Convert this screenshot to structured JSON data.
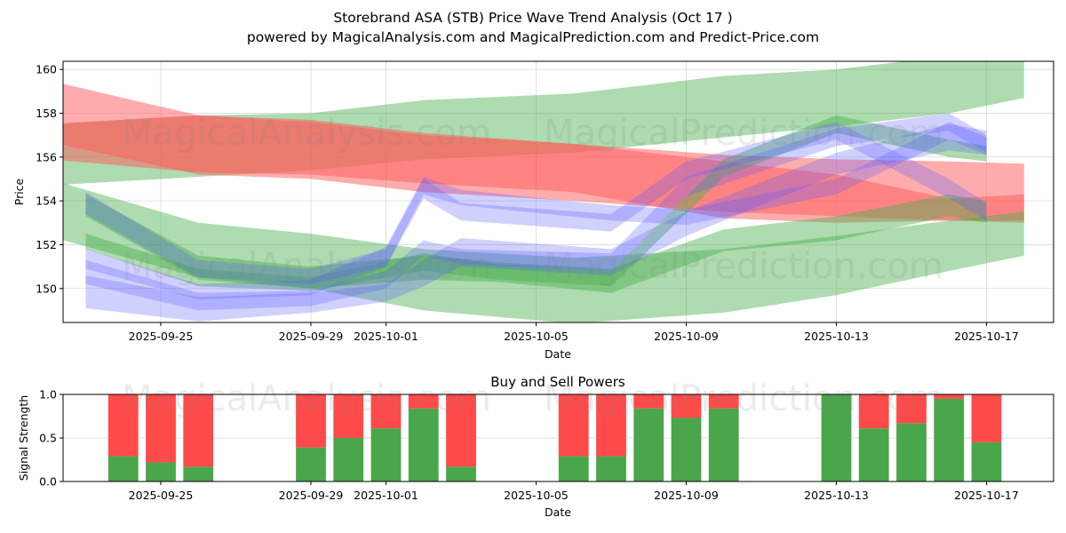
{
  "title": {
    "line1": "Storebrand ASA (STB) Price Wave Trend Analysis (Oct 17 )",
    "line2": "powered by MagicalAnalysis.com and MagicalPrediction.com and Predict-Price.com"
  },
  "watermarks": [
    "MagicalAnalysis.com",
    "MagicalPrediction.com"
  ],
  "colors": {
    "green_band": "#4caf50",
    "red_band": "#ff5a5a",
    "blue_band": "#5a5aff",
    "buy": "#4aa64a",
    "sell": "#ff4a4a",
    "grid": "#d9d9d9"
  },
  "chart_data": [
    {
      "type": "area",
      "title": "",
      "xlabel": "Date",
      "ylabel": "Price",
      "ylim": [
        148.45,
        160.37
      ],
      "xlim": [
        "2025-09-22",
        "2025-10-18"
      ],
      "yticks": [
        150,
        152,
        154,
        156,
        158,
        160
      ],
      "xticks": [
        "2025-09-25",
        "2025-09-29",
        "2025-10-01",
        "2025-10-05",
        "2025-10-09",
        "2025-10-13",
        "2025-10-17"
      ],
      "grid": true,
      "bands": [
        {
          "name": "green-upper-channel",
          "color": "green",
          "x": [
            "2025-09-22",
            "2025-09-26",
            "2025-09-29",
            "2025-10-02",
            "2025-10-06",
            "2025-10-10",
            "2025-10-13",
            "2025-10-16",
            "2025-10-18"
          ],
          "upper": [
            157.5,
            157.9,
            158.0,
            158.6,
            158.9,
            159.7,
            160.0,
            160.6,
            161.0
          ],
          "lower": [
            154.7,
            155.1,
            155.4,
            155.9,
            156.2,
            156.9,
            157.4,
            158.0,
            158.7
          ]
        },
        {
          "name": "red-upper-channel",
          "color": "red",
          "x": [
            "2025-09-22",
            "2025-09-26",
            "2025-09-29",
            "2025-10-02",
            "2025-10-06",
            "2025-10-10",
            "2025-10-13",
            "2025-10-16",
            "2025-10-18"
          ],
          "upper": [
            159.5,
            157.9,
            157.6,
            157.0,
            156.6,
            156.1,
            155.9,
            155.8,
            155.7
          ],
          "lower": [
            156.7,
            155.2,
            155.0,
            154.4,
            154.0,
            153.5,
            153.3,
            153.1,
            153.0
          ]
        },
        {
          "name": "red-lower-channel",
          "color": "red",
          "x": [
            "2025-09-22",
            "2025-09-26",
            "2025-09-29",
            "2025-10-02",
            "2025-10-06",
            "2025-10-10",
            "2025-10-13",
            "2025-10-16",
            "2025-10-18"
          ],
          "upper": [
            157.5,
            157.9,
            157.7,
            157.1,
            156.6,
            155.8,
            155.2,
            154.1,
            154.3
          ],
          "lower": [
            155.9,
            155.3,
            155.2,
            154.8,
            154.4,
            153.2,
            153.0,
            153.1,
            153.1
          ]
        },
        {
          "name": "green-lower-channel",
          "color": "green",
          "x": [
            "2025-09-22",
            "2025-09-26",
            "2025-09-29",
            "2025-10-02",
            "2025-10-06",
            "2025-10-10",
            "2025-10-13",
            "2025-10-16",
            "2025-10-18"
          ],
          "upper": [
            155.0,
            153.0,
            152.5,
            151.8,
            151.4,
            151.8,
            152.4,
            153.1,
            153.5
          ],
          "lower": [
            152.4,
            150.5,
            150.0,
            149.0,
            148.4,
            148.9,
            149.7,
            150.8,
            151.5
          ]
        },
        {
          "name": "green-wave-1",
          "color": "green",
          "x": [
            "2025-09-23",
            "2025-09-26",
            "2025-09-29",
            "2025-10-02",
            "2025-10-04",
            "2025-10-07",
            "2025-10-10",
            "2025-10-13",
            "2025-10-16",
            "2025-10-17"
          ],
          "upper": [
            154.3,
            151.5,
            151.0,
            151.5,
            151.2,
            150.9,
            152.7,
            153.3,
            154.3,
            154.0
          ],
          "lower": [
            153.3,
            150.4,
            150.0,
            150.4,
            150.3,
            149.8,
            151.7,
            152.2,
            153.3,
            153.0
          ]
        },
        {
          "name": "green-wave-2",
          "color": "green",
          "x": [
            "2025-09-23",
            "2025-09-26",
            "2025-09-29",
            "2025-10-02",
            "2025-10-04",
            "2025-10-07",
            "2025-10-10",
            "2025-10-13",
            "2025-10-16",
            "2025-10-17"
          ],
          "upper": [
            152.5,
            150.9,
            150.5,
            151.6,
            151.1,
            150.8,
            155.9,
            157.9,
            156.8,
            156.5
          ],
          "lower": [
            151.8,
            150.1,
            149.9,
            150.8,
            150.4,
            150.1,
            155.1,
            157.1,
            156.0,
            155.8
          ]
        },
        {
          "name": "blue-wave-1",
          "color": "blue",
          "x": [
            "2025-09-23",
            "2025-09-26",
            "2025-09-29",
            "2025-10-01",
            "2025-10-02",
            "2025-10-03",
            "2025-10-07",
            "2025-10-09",
            "2025-10-13",
            "2025-10-16",
            "2025-10-17"
          ],
          "upper": [
            151.8,
            150.2,
            150.4,
            151.9,
            155.1,
            154.5,
            153.8,
            153.6,
            155.0,
            157.6,
            156.9
          ],
          "lower": [
            150.9,
            149.5,
            149.7,
            151.0,
            154.3,
            153.8,
            153.1,
            152.9,
            154.3,
            156.8,
            156.1
          ]
        },
        {
          "name": "blue-wave-2",
          "color": "blue",
          "x": [
            "2025-09-23",
            "2025-09-26",
            "2025-09-29",
            "2025-10-01",
            "2025-10-02",
            "2025-10-03",
            "2025-10-07",
            "2025-10-09",
            "2025-10-13",
            "2025-10-16",
            "2025-10-17"
          ],
          "upper": [
            151.3,
            149.8,
            149.9,
            150.8,
            152.2,
            151.8,
            151.6,
            155.1,
            157.3,
            158.0,
            157.0
          ],
          "lower": [
            150.2,
            149.0,
            149.2,
            150.0,
            151.5,
            151.1,
            150.8,
            154.2,
            156.5,
            157.2,
            156.2
          ]
        },
        {
          "name": "blue-wave-3",
          "color": "blue",
          "x": [
            "2025-09-23",
            "2025-09-26",
            "2025-09-29",
            "2025-10-01",
            "2025-10-02",
            "2025-10-03",
            "2025-10-07",
            "2025-10-09",
            "2025-10-13",
            "2025-10-16",
            "2025-10-17"
          ],
          "upper": [
            150.6,
            149.6,
            149.8,
            150.2,
            151.3,
            152.3,
            151.8,
            153.5,
            156.2,
            157.5,
            157.2
          ],
          "lower": [
            149.1,
            148.5,
            148.9,
            149.4,
            150.1,
            151.0,
            150.6,
            152.4,
            155.2,
            156.3,
            156.1
          ]
        },
        {
          "name": "blue-wave-4",
          "color": "blue",
          "x": [
            "2025-09-23",
            "2025-09-26",
            "2025-09-29",
            "2025-10-01",
            "2025-10-02",
            "2025-10-03",
            "2025-10-07",
            "2025-10-09",
            "2025-10-13",
            "2025-10-16",
            "2025-10-17"
          ],
          "upper": [
            154.4,
            151.3,
            150.9,
            151.8,
            155.0,
            153.9,
            153.4,
            155.8,
            157.6,
            155.0,
            153.9
          ],
          "lower": [
            153.4,
            150.5,
            150.2,
            151.0,
            154.1,
            153.1,
            152.6,
            155.0,
            156.8,
            154.1,
            153.1
          ]
        }
      ]
    },
    {
      "type": "bar",
      "title": "Buy and Sell Powers",
      "xlabel": "Date",
      "ylabel": "Signal Strength",
      "ylim": [
        0,
        1
      ],
      "yticks": [
        "0.0",
        "0.5",
        "1.0"
      ],
      "xticks": [
        "2025-09-25",
        "2025-09-29",
        "2025-10-01",
        "2025-10-05",
        "2025-10-09",
        "2025-10-13",
        "2025-10-17"
      ],
      "xlim": [
        "2025-09-22",
        "2025-10-18"
      ],
      "grid": true,
      "categories": [
        "2025-09-24",
        "2025-09-25",
        "2025-09-26",
        "2025-09-29",
        "2025-09-30",
        "2025-10-01",
        "2025-10-02",
        "2025-10-03",
        "2025-10-06",
        "2025-10-07",
        "2025-10-08",
        "2025-10-09",
        "2025-10-10",
        "2025-10-13",
        "2025-10-14",
        "2025-10-15",
        "2025-10-16",
        "2025-10-17"
      ],
      "series": [
        {
          "name": "Buy",
          "color": "green",
          "values": [
            0.29,
            0.22,
            0.17,
            0.39,
            0.5,
            0.61,
            0.84,
            0.17,
            0.29,
            0.29,
            0.84,
            0.73,
            0.84,
            1.0,
            0.61,
            0.67,
            0.95,
            0.45
          ]
        },
        {
          "name": "Sell",
          "color": "red",
          "values": [
            0.71,
            0.78,
            0.83,
            0.61,
            0.5,
            0.39,
            0.16,
            0.83,
            0.71,
            0.71,
            0.16,
            0.27,
            0.16,
            0.0,
            0.39,
            0.33,
            0.05,
            0.55
          ]
        }
      ]
    }
  ]
}
